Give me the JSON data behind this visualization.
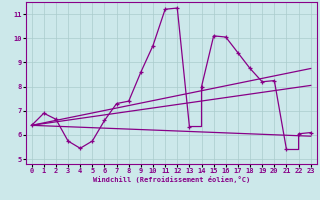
{
  "xlabel": "Windchill (Refroidissement éolien,°C)",
  "xlim": [
    -0.5,
    23.5
  ],
  "ylim": [
    4.8,
    11.5
  ],
  "xticks": [
    0,
    1,
    2,
    3,
    4,
    5,
    6,
    7,
    8,
    9,
    10,
    11,
    12,
    13,
    14,
    15,
    16,
    17,
    18,
    19,
    20,
    21,
    22,
    23
  ],
  "yticks": [
    5,
    6,
    7,
    8,
    9,
    10,
    11
  ],
  "bg_color": "#cce8ea",
  "grid_color": "#aacccc",
  "line_color": "#880088",
  "curve1_x": [
    0,
    1,
    2,
    3,
    4,
    4,
    5,
    6,
    7,
    8,
    9,
    10,
    11,
    12,
    13,
    14,
    14,
    15,
    16,
    17,
    18,
    19,
    20,
    21,
    22,
    22,
    23
  ],
  "curve1_y": [
    6.4,
    6.9,
    6.65,
    5.75,
    5.45,
    5.45,
    5.75,
    6.6,
    7.3,
    7.4,
    8.6,
    9.7,
    11.2,
    11.25,
    6.35,
    6.35,
    8.0,
    10.1,
    10.05,
    9.4,
    8.75,
    8.2,
    8.25,
    5.4,
    5.4,
    6.05,
    6.1
  ],
  "curve1_markers_x": [
    0,
    1,
    2,
    3,
    4,
    5,
    6,
    7,
    8,
    9,
    10,
    11,
    12,
    13,
    14,
    15,
    16,
    17,
    18,
    19,
    20,
    21,
    22,
    23
  ],
  "curve1_markers_y": [
    6.4,
    6.9,
    6.65,
    5.75,
    5.45,
    5.75,
    6.6,
    7.3,
    7.4,
    8.6,
    9.7,
    11.2,
    11.25,
    6.35,
    8.0,
    10.1,
    10.05,
    9.4,
    8.75,
    8.2,
    8.25,
    5.4,
    6.05,
    6.1
  ],
  "curve2_x": [
    0,
    23
  ],
  "curve2_y": [
    6.4,
    5.95
  ],
  "curve3_x": [
    0,
    23
  ],
  "curve3_y": [
    6.4,
    8.05
  ],
  "curve4_x": [
    0,
    23
  ],
  "curve4_y": [
    6.4,
    8.75
  ]
}
